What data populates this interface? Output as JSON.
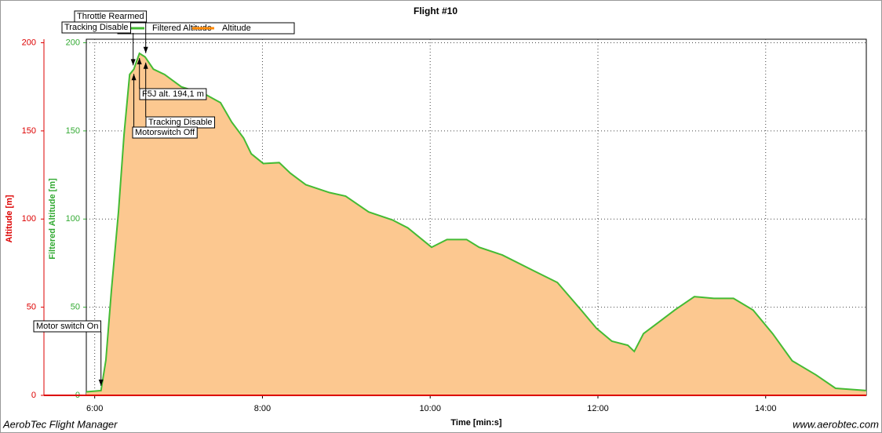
{
  "chart_data": {
    "type": "area",
    "title": "Flight #10",
    "x_label": "Time [min:s]",
    "y_label": "Altitude [m]",
    "y2_label": "Filtered Altitude [m]",
    "x": [
      354,
      364.5,
      368,
      372,
      377,
      381,
      385,
      388,
      392,
      396,
      402,
      410,
      422,
      438.5,
      450,
      458,
      466.5,
      472,
      480.6,
      492,
      500,
      511,
      528,
      539.5,
      556,
      573,
      584,
      601,
      612,
      626,
      635,
      651.6,
      674,
      691,
      708,
      719,
      730,
      741.4,
      746,
      752.6,
      764,
      775,
      789,
      803,
      817,
      831,
      845,
      859,
      876,
      890,
      912
    ],
    "series": [
      {
        "name": "Filtered Altitude",
        "color": "#44bb33",
        "axis": "y2",
        "values": [
          2,
          2.7,
          20,
          60,
          104,
          148,
          182,
          185,
          194,
          192,
          185,
          182,
          175,
          171,
          166,
          155,
          146,
          137,
          131.5,
          132,
          126,
          119.5,
          115,
          113,
          104,
          99.5,
          95,
          84,
          88.4,
          88.4,
          84,
          79.6,
          70.7,
          64,
          48.4,
          38,
          30.7,
          28.4,
          24.9,
          35,
          41.8,
          48.4,
          56,
          55,
          55,
          48.4,
          35,
          19.6,
          11.6,
          4,
          2.7
        ]
      },
      {
        "name": "Altitude",
        "color": "#ff8800",
        "values": [
          2,
          2.7,
          20,
          60,
          104,
          148,
          182,
          185,
          194,
          192,
          185,
          182,
          175,
          171,
          166,
          155,
          146,
          137,
          131.5,
          132,
          126,
          119.5,
          115,
          113,
          104,
          99.5,
          95,
          84,
          88.4,
          88.4,
          84,
          79.6,
          70.7,
          64,
          48.4,
          38,
          30.7,
          28.4,
          24.9,
          35,
          41.8,
          48.4,
          56,
          55,
          55,
          48.4,
          35,
          19.6,
          11.6,
          4,
          2.7
        ]
      }
    ],
    "xlim": [
      354,
      912
    ],
    "xticks": [
      {
        "value": 360,
        "label": "6:00"
      },
      {
        "value": 480,
        "label": "8:00"
      },
      {
        "value": 600,
        "label": "10:00"
      },
      {
        "value": 720,
        "label": "12:00"
      },
      {
        "value": 840,
        "label": "14:00"
      }
    ],
    "ylim": [
      0,
      202
    ],
    "yticks": [
      0,
      50,
      100,
      150,
      200
    ],
    "y2lim": [
      0,
      202
    ],
    "y2ticks": [
      0,
      50,
      100,
      150,
      200
    ],
    "grid": true,
    "annotations": [
      {
        "text": "Motor switch On",
        "x": 364.5
      },
      {
        "text": "Tracking Disable",
        "x": 387.5
      },
      {
        "text": "Throttle Rearmed",
        "x": 396.5
      },
      {
        "text": "F5J alt. 194,1 m",
        "x": 392
      },
      {
        "text": "Tracking Disable",
        "x": 396.5
      },
      {
        "text": "Motorswitch Off",
        "x": 388
      }
    ],
    "footer_left": "AerobTec Flight Manager",
    "footer_right": "www.aerobtec.com"
  }
}
